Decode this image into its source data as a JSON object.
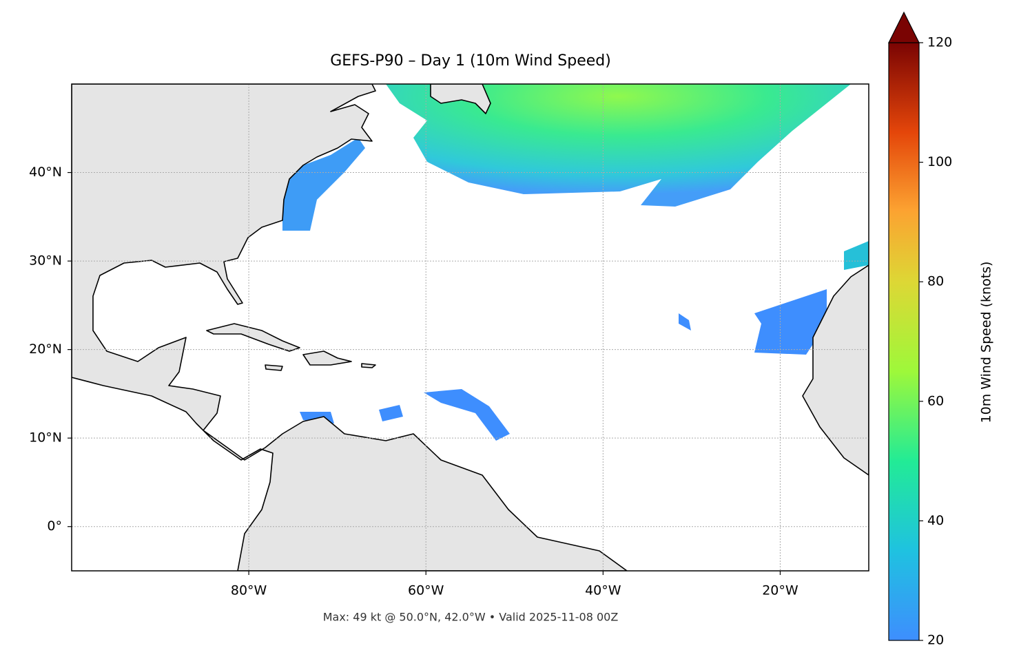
{
  "title": "GEFS-P90 – Day 1 (10m Wind Speed)",
  "map": {
    "xlim": [
      -100,
      -10
    ],
    "ylim": [
      -5,
      50
    ],
    "xticks": [
      {
        "value": -80,
        "label": "80°W"
      },
      {
        "value": -60,
        "label": "60°W"
      },
      {
        "value": -40,
        "label": "40°W"
      },
      {
        "value": -20,
        "label": "20°W"
      }
    ],
    "yticks": [
      {
        "value": 0,
        "label": "0°"
      },
      {
        "value": 10,
        "label": "10°N"
      },
      {
        "value": 20,
        "label": "20°N"
      },
      {
        "value": 30,
        "label": "30°N"
      },
      {
        "value": 40,
        "label": "40°N"
      }
    ],
    "grid": true
  },
  "colorbar": {
    "label": "10m Wind Speed (knots)",
    "ylim": [
      20,
      120
    ],
    "yticks": [
      20,
      40,
      60,
      80,
      100,
      120
    ]
  },
  "footer": "Max: 49 kt @ 50.0°N, 42.0°W • Valid 2025-11-08 00Z"
}
